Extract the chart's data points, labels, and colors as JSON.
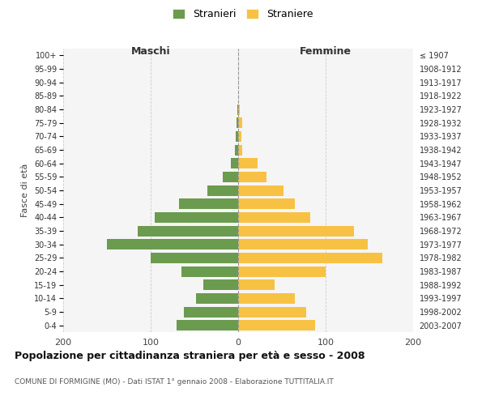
{
  "age_groups": [
    "0-4",
    "5-9",
    "10-14",
    "15-19",
    "20-24",
    "25-29",
    "30-34",
    "35-39",
    "40-44",
    "45-49",
    "50-54",
    "55-59",
    "60-64",
    "65-69",
    "70-74",
    "75-79",
    "80-84",
    "85-89",
    "90-94",
    "95-99",
    "100+"
  ],
  "birth_years": [
    "2003-2007",
    "1998-2002",
    "1993-1997",
    "1988-1992",
    "1983-1987",
    "1978-1982",
    "1973-1977",
    "1968-1972",
    "1963-1967",
    "1958-1962",
    "1953-1957",
    "1948-1952",
    "1943-1947",
    "1938-1942",
    "1933-1937",
    "1928-1932",
    "1923-1927",
    "1918-1922",
    "1913-1917",
    "1908-1912",
    "≤ 1907"
  ],
  "maschi": [
    70,
    62,
    48,
    40,
    65,
    100,
    150,
    115,
    95,
    68,
    35,
    18,
    8,
    4,
    3,
    2,
    1,
    0,
    0,
    0,
    0
  ],
  "femmine": [
    88,
    78,
    65,
    42,
    100,
    165,
    148,
    132,
    82,
    65,
    52,
    32,
    22,
    5,
    4,
    5,
    2,
    0,
    0,
    0,
    0
  ],
  "maschi_color": "#6b9b4e",
  "femmine_color": "#f7c244",
  "background_color": "#ffffff",
  "plot_bg_color": "#f5f5f5",
  "grid_color": "#cccccc",
  "title": "Popolazione per cittadinanza straniera per età e sesso - 2008",
  "subtitle": "COMUNE DI FORMIGINE (MO) - Dati ISTAT 1° gennaio 2008 - Elaborazione TUTTITALIA.IT",
  "label_maschi": "Maschi",
  "label_femmine": "Femmine",
  "ylabel_left": "Fasce di età",
  "xlim": 200,
  "legend_stranieri": "Stranieri",
  "legend_straniere": "Straniere"
}
